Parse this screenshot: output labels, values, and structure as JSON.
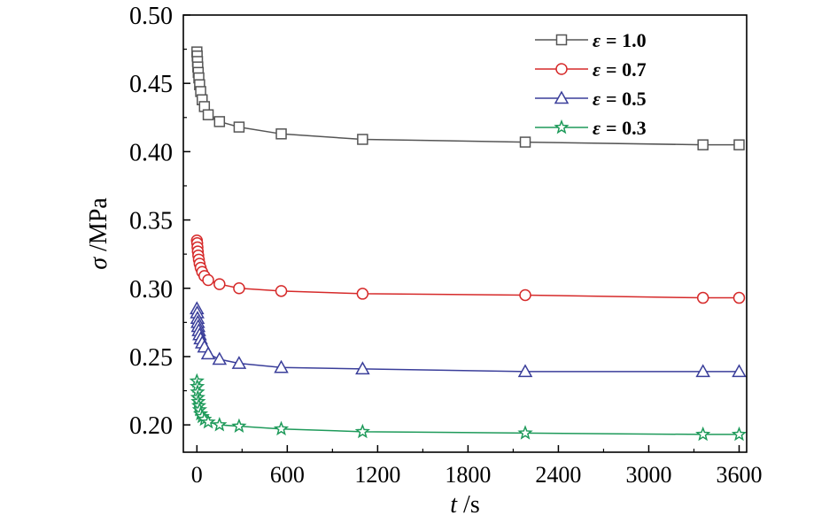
{
  "chart_data": {
    "type": "line",
    "xlabel_var": "t",
    "xlabel_unit": " /s",
    "ylabel_var": "σ",
    "ylabel_unit": " /MPa",
    "xlim": [
      -90,
      3650
    ],
    "ylim": [
      0.18,
      0.5
    ],
    "xticks": [
      0,
      600,
      1200,
      1800,
      2400,
      3000,
      3600
    ],
    "yticks": [
      0.2,
      0.25,
      0.3,
      0.35,
      0.4,
      0.45,
      0.5
    ],
    "grid": false,
    "legend_position": "top-right",
    "series": [
      {
        "name": "ε = 1.0",
        "legend_var": "ε",
        "legend_value": "= 1.0",
        "color": "#555555",
        "marker": "square",
        "x": [
          0,
          2,
          4,
          6,
          9,
          13,
          18,
          25,
          35,
          50,
          75,
          150,
          280,
          560,
          1100,
          2180,
          3360,
          3600
        ],
        "y": [
          0.473,
          0.47,
          0.466,
          0.462,
          0.458,
          0.454,
          0.449,
          0.444,
          0.438,
          0.433,
          0.427,
          0.422,
          0.418,
          0.413,
          0.409,
          0.407,
          0.405,
          0.405
        ]
      },
      {
        "name": "ε = 0.7",
        "legend_var": "ε",
        "legend_value": "= 0.7",
        "color": "#d62a2a",
        "marker": "circle",
        "x": [
          0,
          2,
          4,
          6,
          9,
          13,
          18,
          25,
          35,
          50,
          75,
          150,
          280,
          560,
          1100,
          2180,
          3360,
          3600
        ],
        "y": [
          0.335,
          0.333,
          0.33,
          0.327,
          0.324,
          0.321,
          0.318,
          0.315,
          0.312,
          0.309,
          0.306,
          0.303,
          0.3,
          0.298,
          0.296,
          0.295,
          0.293,
          0.293
        ]
      },
      {
        "name": "ε = 0.5",
        "legend_var": "ε",
        "legend_value": "= 0.5",
        "color": "#3a3e9a",
        "marker": "triangle",
        "x": [
          0,
          2,
          4,
          6,
          9,
          13,
          18,
          25,
          35,
          50,
          75,
          150,
          280,
          560,
          1100,
          2180,
          3360,
          3600
        ],
        "y": [
          0.285,
          0.282,
          0.278,
          0.275,
          0.272,
          0.269,
          0.266,
          0.263,
          0.26,
          0.257,
          0.252,
          0.248,
          0.245,
          0.242,
          0.241,
          0.239,
          0.239,
          0.239
        ]
      },
      {
        "name": "ε = 0.3",
        "legend_var": "ε",
        "legend_value": "= 0.3",
        "color": "#1e9a5a",
        "marker": "star",
        "x": [
          0,
          2,
          4,
          6,
          9,
          13,
          18,
          25,
          35,
          50,
          75,
          150,
          280,
          560,
          1100,
          2180,
          3360,
          3600
        ],
        "y": [
          0.232,
          0.228,
          0.224,
          0.22,
          0.217,
          0.214,
          0.211,
          0.208,
          0.206,
          0.204,
          0.202,
          0.2,
          0.199,
          0.197,
          0.195,
          0.194,
          0.193,
          0.193
        ]
      }
    ]
  }
}
